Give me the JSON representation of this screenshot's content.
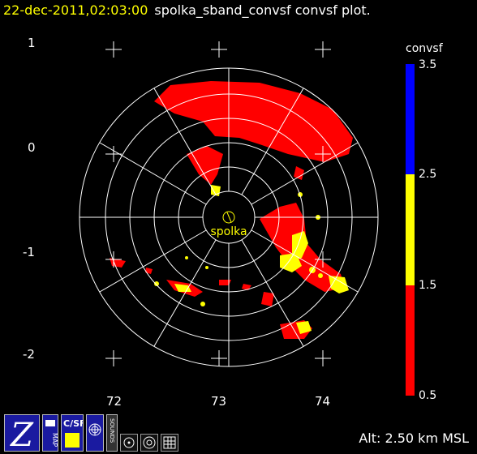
{
  "header": {
    "timestamp": "22-dec-2011,02:03:00",
    "description": "spolka_sband_convsf convsf  plot."
  },
  "radar": {
    "station_label": "spolka",
    "y_tick_labels": [
      "1",
      "0",
      "-1",
      "-2"
    ],
    "x_tick_labels": [
      "72",
      "73",
      "74"
    ]
  },
  "colorbar": {
    "title": "convsf",
    "ticks": [
      "3.5",
      "2.5",
      "1.5",
      "0.5"
    ],
    "colors": {
      "low": "#ff0000",
      "mid": "#ffff00",
      "high": "#0000ff"
    }
  },
  "footer": {
    "altitude": "Alt: 2.50 km MSL"
  },
  "toolbar": {
    "z_icon": "zoom-z-icon",
    "map_label": "MAP",
    "csf_label": "C/SF",
    "sounds_label": "SOUNDS"
  }
}
